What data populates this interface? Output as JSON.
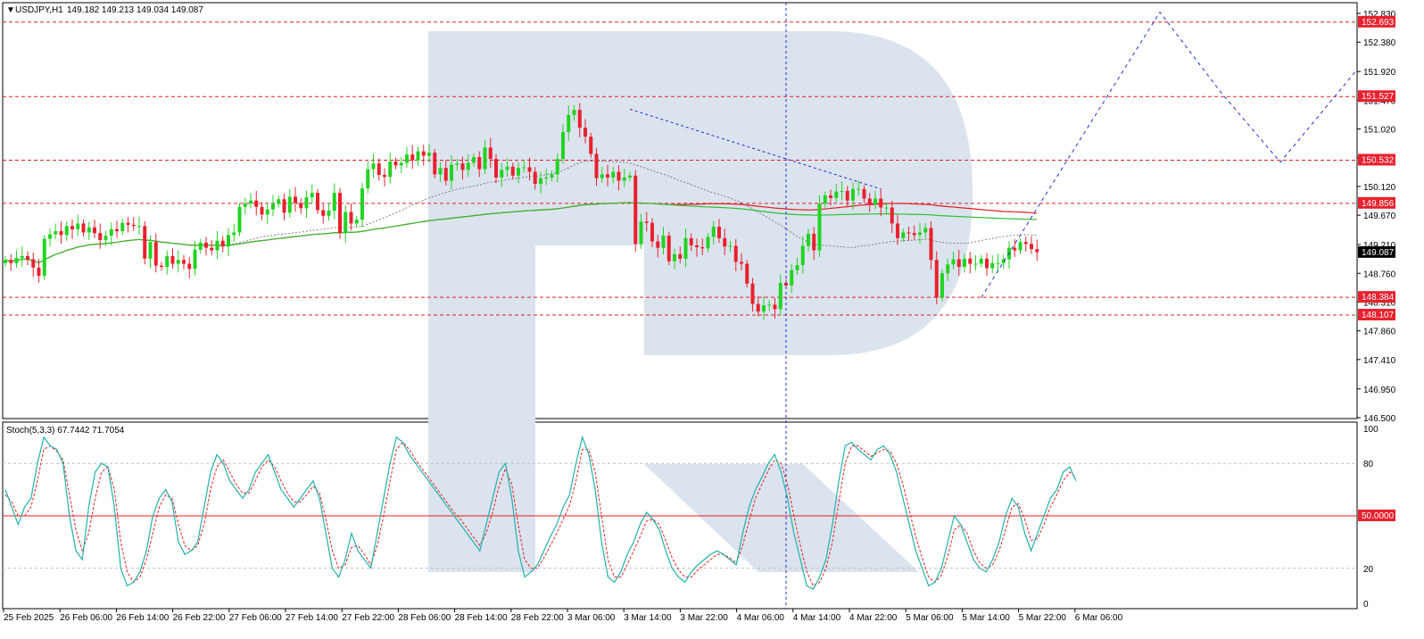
{
  "header": {
    "symbol": "USDJPY,H1",
    "ohlc": "149.182 149.213 149.034 149.087"
  },
  "stoch_header": "Stoch(5,3,3) 67.7442 71.7054",
  "chart_data": [
    {
      "type": "candlestick",
      "title": "USDJPY,H1",
      "ohlc_last": {
        "open": 149.182,
        "high": 149.213,
        "low": 149.034,
        "close": 149.087
      },
      "ylim": [
        146.5,
        152.83
      ],
      "y_ticks": [
        "152.830",
        "152.380",
        "151.920",
        "151.470",
        "151.020",
        "150.570",
        "150.120",
        "149.670",
        "149.210",
        "148.760",
        "148.310",
        "147.860",
        "147.410",
        "146.950",
        "146.500"
      ],
      "x_ticks": [
        "25 Feb 2025",
        "26 Feb 06:00",
        "26 Feb 14:00",
        "26 Feb 22:00",
        "27 Feb 06:00",
        "27 Feb 14:00",
        "27 Feb 22:00",
        "28 Feb 06:00",
        "28 Feb 14:00",
        "28 Feb 22:00",
        "3 Mar 06:00",
        "3 Mar 14:00",
        "3 Mar 22:00",
        "4 Mar 06:00",
        "4 Mar 14:00",
        "4 Mar 22:00",
        "5 Mar 06:00",
        "5 Mar 14:00",
        "5 Mar 22:00",
        "6 Mar 06:00"
      ],
      "current_price": "149.087",
      "levels": [
        {
          "label": "152.693",
          "value": 152.693
        },
        {
          "label": "151.527",
          "value": 151.527
        },
        {
          "label": "150.532",
          "value": 150.532
        },
        {
          "label": "149.856",
          "value": 149.856
        },
        {
          "label": "148.384",
          "value": 148.384
        },
        {
          "label": "148.107",
          "value": 148.107
        }
      ],
      "closes": [
        148.97,
        148.92,
        149.0,
        149.03,
        148.98,
        148.85,
        148.72,
        149.3,
        149.37,
        149.42,
        149.36,
        149.5,
        149.45,
        149.54,
        149.4,
        149.48,
        149.39,
        149.28,
        149.35,
        149.45,
        149.42,
        149.55,
        149.52,
        149.5,
        149.5,
        148.99,
        149.25,
        148.88,
        148.86,
        149.03,
        148.91,
        148.97,
        148.91,
        148.83,
        149.13,
        149.24,
        149.16,
        149.12,
        149.27,
        149.18,
        149.36,
        149.4,
        149.8,
        149.85,
        149.9,
        149.8,
        149.68,
        149.76,
        149.85,
        149.92,
        149.71,
        149.96,
        149.86,
        149.78,
        149.95,
        150.02,
        149.75,
        149.66,
        149.74,
        150.02,
        149.39,
        149.72,
        149.54,
        149.6,
        150.09,
        150.39,
        150.48,
        150.3,
        150.27,
        150.51,
        150.45,
        150.49,
        150.62,
        150.53,
        150.67,
        150.6,
        150.65,
        150.31,
        150.41,
        150.21,
        150.46,
        150.48,
        150.38,
        150.49,
        150.58,
        150.39,
        150.73,
        150.55,
        150.26,
        150.38,
        150.43,
        150.29,
        150.41,
        150.42,
        150.35,
        150.16,
        150.25,
        150.26,
        150.31,
        150.55,
        150.97,
        151.24,
        151.32,
        151.04,
        150.9,
        150.63,
        150.25,
        150.31,
        150.26,
        150.35,
        150.21,
        150.26,
        150.29,
        149.22,
        149.57,
        149.55,
        149.26,
        149.16,
        149.35,
        148.95,
        149.06,
        148.99,
        149.31,
        149.2,
        149.17,
        149.15,
        149.33,
        149.49,
        149.31,
        149.18,
        149.19,
        148.94,
        148.91,
        148.6,
        148.28,
        148.16,
        148.26,
        148.27,
        148.2,
        148.61,
        148.57,
        148.81,
        148.89,
        149.19,
        149.38,
        149.12,
        149.85,
        149.98,
        149.94,
        150.04,
        150.05,
        149.9,
        150.08,
        150.08,
        149.93,
        149.84,
        149.93,
        149.79,
        149.79,
        149.54,
        149.31,
        149.4,
        149.39,
        149.36,
        149.4,
        149.47,
        148.97,
        148.38,
        148.76,
        148.9,
        148.98,
        148.86,
        148.99,
        148.91,
        148.91,
        148.99,
        148.84,
        148.92,
        148.92,
        148.98,
        149.16,
        149.12,
        149.25,
        149.22,
        149.14,
        149.09
      ],
      "indicators": [
        "moving-average-red",
        "moving-average-gray-dotted",
        "moving-average-green"
      ],
      "projection": "blue dotted forecast path"
    },
    {
      "type": "line",
      "title": "Stoch(5,3,3) 67.7442 71.7054",
      "ylim": [
        0,
        100
      ],
      "y_ticks": [
        "100",
        "80",
        "20",
        "0"
      ],
      "level_label": "50.0000",
      "level_value": 50,
      "series": [
        {
          "name": "main",
          "values": [
            65,
            55,
            45,
            55,
            60,
            80,
            95,
            90,
            88,
            80,
            50,
            30,
            25,
            55,
            75,
            80,
            78,
            55,
            20,
            10,
            12,
            18,
            30,
            50,
            60,
            65,
            58,
            35,
            28,
            30,
            35,
            55,
            75,
            85,
            80,
            70,
            65,
            60,
            65,
            75,
            80,
            85,
            75,
            65,
            60,
            55,
            60,
            65,
            70,
            60,
            40,
            20,
            15,
            25,
            40,
            30,
            25,
            20,
            40,
            60,
            80,
            95,
            92,
            85,
            80,
            75,
            70,
            65,
            60,
            55,
            50,
            45,
            40,
            35,
            30,
            45,
            60,
            75,
            80,
            60,
            30,
            15,
            18,
            22,
            30,
            38,
            45,
            55,
            62,
            80,
            95,
            85,
            65,
            35,
            15,
            12,
            18,
            28,
            35,
            45,
            52,
            48,
            42,
            30,
            20,
            15,
            12,
            18,
            22,
            25,
            28,
            30,
            28,
            25,
            22,
            40,
            55,
            65,
            72,
            80,
            85,
            75,
            60,
            40,
            25,
            10,
            8,
            15,
            25,
            45,
            70,
            90,
            92,
            88,
            85,
            82,
            88,
            90,
            85,
            75,
            60,
            45,
            30,
            20,
            10,
            12,
            20,
            35,
            50,
            45,
            35,
            25,
            20,
            18,
            25,
            35,
            50,
            60,
            55,
            40,
            30,
            40,
            50,
            60,
            65,
            75,
            78,
            70
          ]
        },
        {
          "name": "signal",
          "values": [
            62,
            58,
            50,
            50,
            55,
            70,
            88,
            90,
            87,
            82,
            62,
            42,
            30,
            40,
            60,
            75,
            78,
            65,
            35,
            18,
            12,
            15,
            25,
            40,
            55,
            62,
            60,
            45,
            33,
            30,
            33,
            45,
            65,
            78,
            82,
            75,
            68,
            63,
            63,
            70,
            78,
            82,
            78,
            70,
            63,
            58,
            58,
            62,
            67,
            63,
            48,
            30,
            20,
            22,
            32,
            33,
            28,
            22,
            33,
            50,
            70,
            88,
            92,
            88,
            82,
            77,
            72,
            67,
            62,
            57,
            52,
            48,
            43,
            38,
            33,
            40,
            52,
            67,
            77,
            68,
            45,
            25,
            20,
            20,
            26,
            33,
            40,
            48,
            56,
            70,
            88,
            88,
            75,
            50,
            25,
            15,
            15,
            22,
            30,
            38,
            47,
            48,
            45,
            36,
            26,
            19,
            15,
            15,
            19,
            22,
            25,
            28,
            28,
            26,
            23,
            33,
            47,
            60,
            68,
            76,
            82,
            80,
            68,
            50,
            33,
            18,
            10,
            12,
            20,
            35,
            58,
            80,
            90,
            90,
            87,
            84,
            86,
            88,
            87,
            80,
            68,
            53,
            38,
            26,
            15,
            12,
            16,
            27,
            42,
            45,
            40,
            30,
            23,
            20,
            22,
            30,
            42,
            55,
            57,
            48,
            36,
            37,
            45,
            55,
            62,
            70,
            75,
            72
          ]
        }
      ]
    }
  ]
}
